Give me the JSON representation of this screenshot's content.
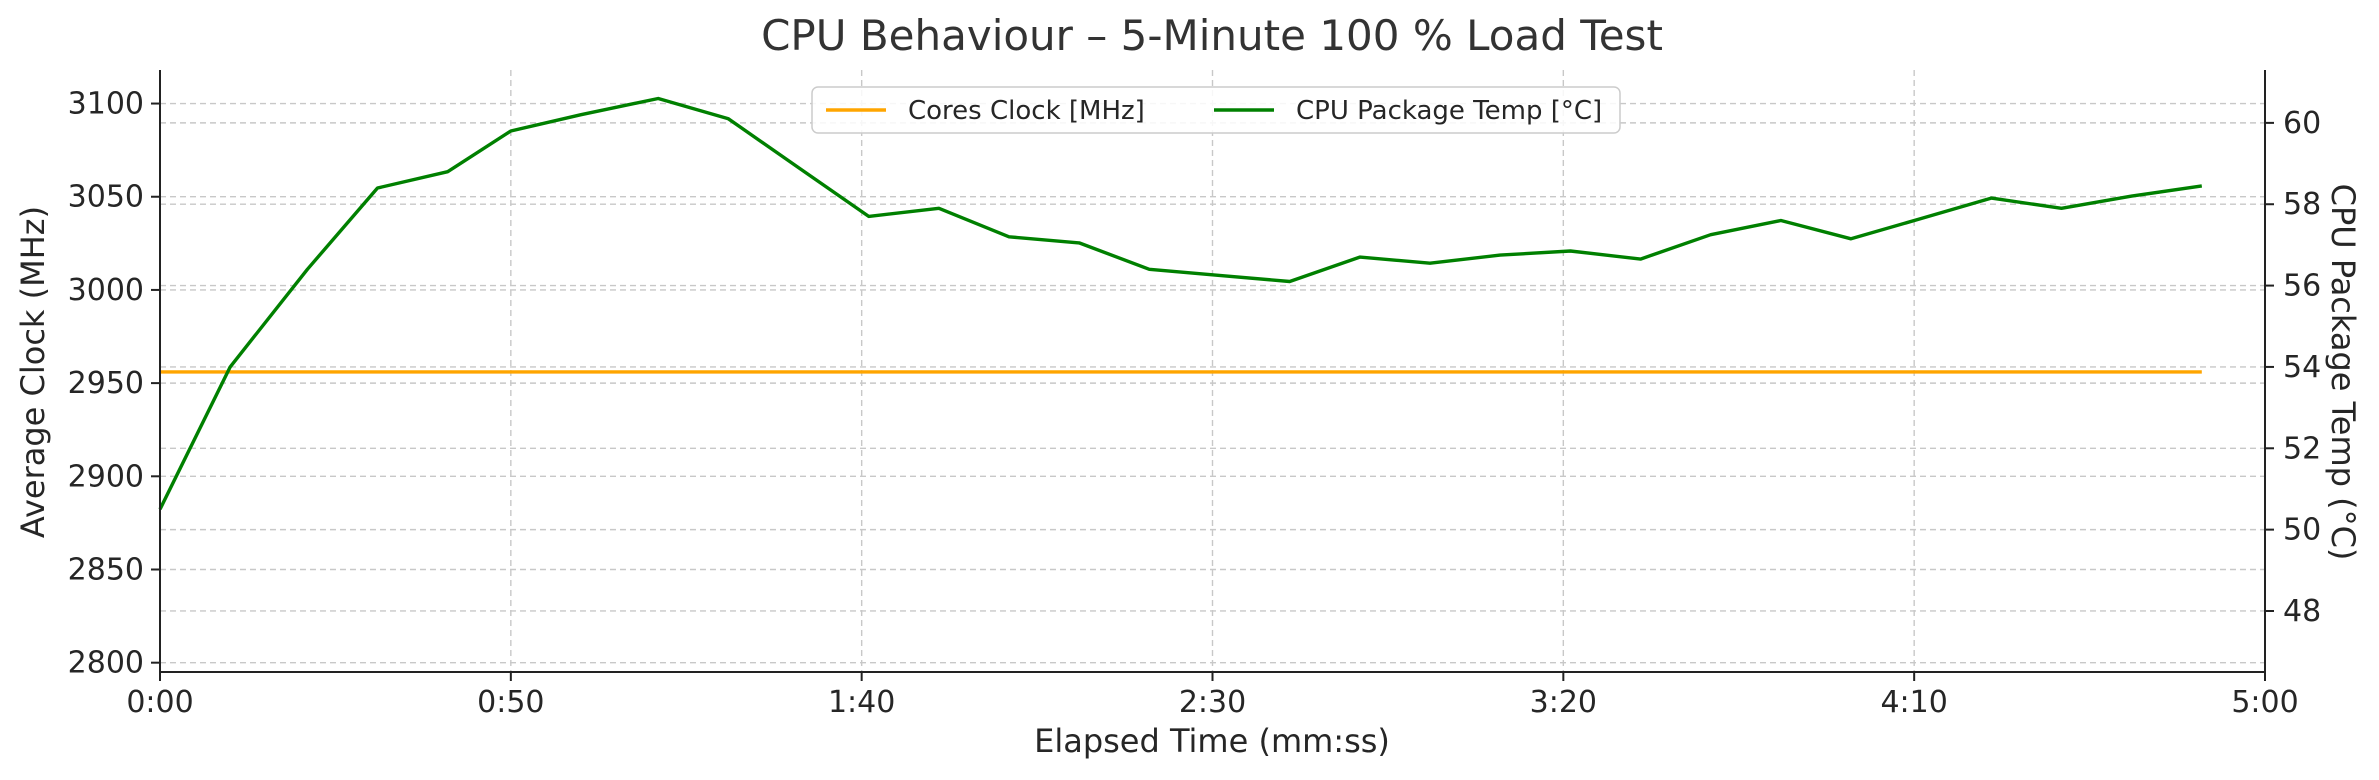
{
  "chart_data": {
    "type": "line",
    "title": "CPU Behaviour – 5-Minute 100 % Load Test",
    "xlabel": "Elapsed Time (mm:ss)",
    "ylabel": "Average Clock (MHz)",
    "y2label": "CPU Package Temp (°C)",
    "xlim": [
      0,
      300
    ],
    "ylim": [
      2795,
      3118
    ],
    "y2lim": [
      46.5,
      61.3
    ],
    "x_ticks": [
      0,
      50,
      100,
      150,
      200,
      250,
      300
    ],
    "x_tick_labels": [
      "0:00",
      "0:50",
      "1:40",
      "2:30",
      "3:20",
      "4:10",
      "5:00"
    ],
    "y_ticks": [
      2800,
      2850,
      2900,
      2950,
      3000,
      3050,
      3100
    ],
    "y_tick_labels": [
      "2800",
      "2850",
      "2900",
      "2950",
      "3000",
      "3050",
      "3100"
    ],
    "y2_ticks": [
      48,
      50,
      52,
      54,
      56,
      58,
      60
    ],
    "y2_tick_labels": [
      "48",
      "50",
      "52",
      "54",
      "56",
      "58",
      "60"
    ],
    "grid": true,
    "legend_position": "top-center",
    "series": [
      {
        "name": "Cores Clock [MHz]",
        "axis": "left",
        "color": "#FFA500",
        "x": [
          0,
          291
        ],
        "values": [
          2956,
          2956
        ]
      },
      {
        "name": "CPU Package Temp [°C]",
        "axis": "right",
        "color": "#008000",
        "x": [
          0,
          10,
          21,
          31,
          41,
          50,
          60,
          71,
          81,
          91,
          101,
          111,
          121,
          131,
          141,
          151,
          161,
          171,
          181,
          191,
          201,
          211,
          221,
          231,
          241,
          251,
          261,
          271,
          281,
          291
        ],
        "values": [
          50.5,
          54.0,
          56.4,
          58.4,
          58.8,
          59.8,
          60.2,
          60.6,
          60.1,
          58.9,
          57.7,
          57.9,
          57.2,
          57.05,
          56.4,
          56.25,
          56.1,
          56.7,
          56.55,
          56.75,
          56.85,
          56.65,
          57.25,
          57.6,
          57.15,
          57.65,
          58.15,
          57.9,
          58.2,
          58.45
        ]
      }
    ]
  }
}
